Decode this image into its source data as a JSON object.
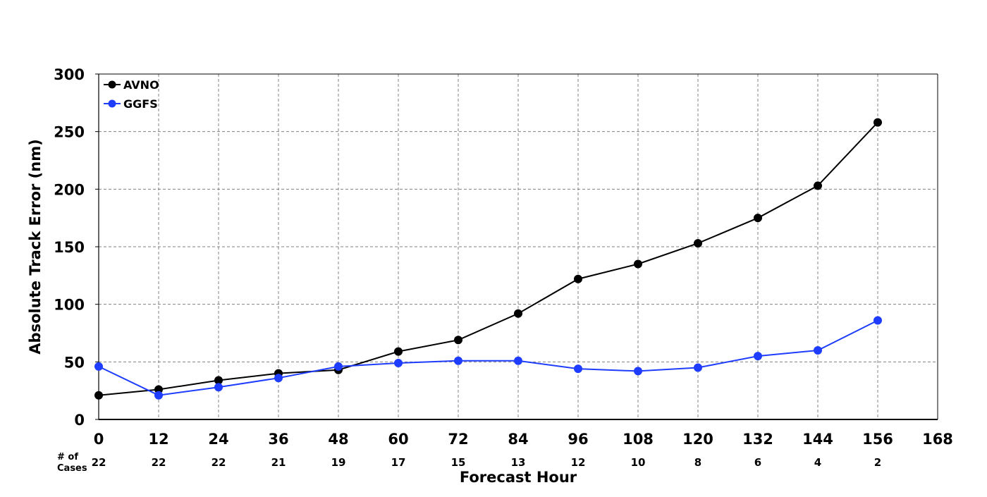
{
  "chart_data": {
    "type": "line",
    "title": "",
    "xlabel": "Forecast Hour",
    "ylabel": "Absolute Track Error (nm)",
    "xlim": [
      0,
      168
    ],
    "ylim": [
      0,
      300
    ],
    "x_ticks": [
      0,
      12,
      24,
      36,
      48,
      60,
      72,
      84,
      96,
      108,
      120,
      132,
      144,
      156,
      168
    ],
    "y_ticks": [
      0,
      50,
      100,
      150,
      200,
      250,
      300
    ],
    "grid": true,
    "legend_position": "top-left",
    "x": [
      0,
      12,
      24,
      36,
      48,
      60,
      72,
      84,
      96,
      108,
      120,
      132,
      144,
      156
    ],
    "series": [
      {
        "name": "AVNO",
        "color": "#000000",
        "values": [
          21,
          26,
          34,
          40,
          43,
          59,
          69,
          92,
          122,
          135,
          153,
          175,
          203,
          258
        ]
      },
      {
        "name": "GGFS",
        "color": "#1f3dff",
        "values": [
          46,
          21,
          28,
          36,
          46,
          49,
          51,
          51,
          44,
          42,
          45,
          55,
          60,
          86
        ]
      }
    ],
    "cases_header": [
      "# of",
      "Cases"
    ],
    "cases": [
      22,
      22,
      22,
      21,
      19,
      17,
      15,
      13,
      12,
      10,
      8,
      6,
      4,
      2
    ]
  }
}
